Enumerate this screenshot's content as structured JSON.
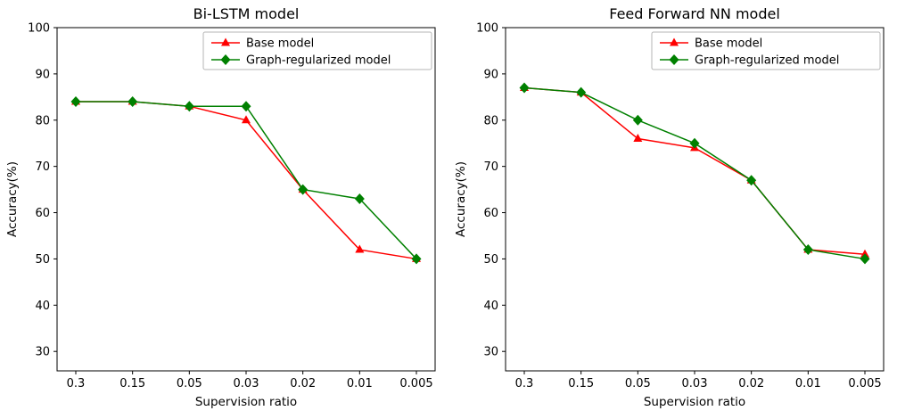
{
  "figure": {
    "background": "#ffffff"
  },
  "chart_data": [
    {
      "type": "line",
      "title": "Bi-LSTM model",
      "xlabel": "Supervision ratio",
      "ylabel": "Accuracy(%)",
      "categories": [
        "0.3",
        "0.15",
        "0.05",
        "0.03",
        "0.02",
        "0.01",
        "0.005"
      ],
      "yticks": [
        30,
        40,
        50,
        60,
        70,
        80,
        90,
        100
      ],
      "ylim": [
        25.8,
        100
      ],
      "grid": false,
      "legend_position": "upper right",
      "series": [
        {
          "name": "Base model",
          "color": "#ff0000",
          "marker": "triangle",
          "values": [
            84,
            84,
            83,
            80,
            65,
            52,
            50
          ]
        },
        {
          "name": "Graph-regularized model",
          "color": "#008000",
          "marker": "diamond",
          "values": [
            84,
            84,
            83,
            83,
            65,
            63,
            50
          ]
        }
      ]
    },
    {
      "type": "line",
      "title": "Feed Forward NN model",
      "xlabel": "Supervision ratio",
      "ylabel": "Accuracy(%)",
      "categories": [
        "0.3",
        "0.15",
        "0.05",
        "0.03",
        "0.02",
        "0.01",
        "0.005"
      ],
      "yticks": [
        30,
        40,
        50,
        60,
        70,
        80,
        90,
        100
      ],
      "ylim": [
        25.8,
        100
      ],
      "grid": false,
      "legend_position": "upper right",
      "series": [
        {
          "name": "Base model",
          "color": "#ff0000",
          "marker": "triangle",
          "values": [
            87,
            86,
            76,
            74,
            67,
            52,
            51
          ]
        },
        {
          "name": "Graph-regularized model",
          "color": "#008000",
          "marker": "diamond",
          "values": [
            87,
            86,
            80,
            75,
            67,
            52,
            50
          ]
        }
      ]
    }
  ]
}
